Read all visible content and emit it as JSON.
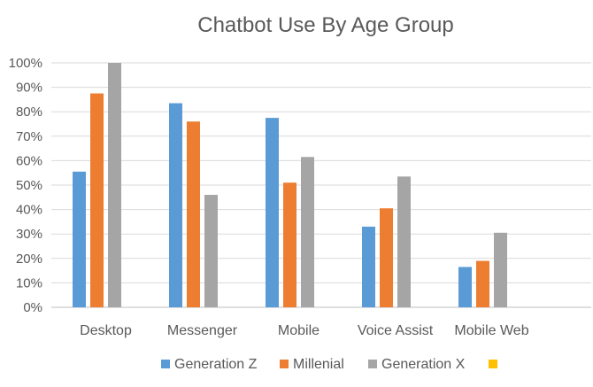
{
  "chart_data": {
    "type": "bar",
    "title": "Chatbot Use By Age Group",
    "xlabel": "",
    "ylabel": "",
    "categories": [
      "Desktop",
      "Messenger",
      "Mobile",
      "Voice Assist",
      "Mobile Web"
    ],
    "ylim": [
      0,
      100
    ],
    "ytick_values": [
      0,
      10,
      20,
      30,
      40,
      50,
      60,
      70,
      80,
      90,
      100
    ],
    "ytick_labels": [
      "0%",
      "10%",
      "20%",
      "30%",
      "40%",
      "50%",
      "60%",
      "70%",
      "80%",
      "90%",
      "100%"
    ],
    "grid": true,
    "legend_position": "bottom",
    "series": [
      {
        "name": "Generation Z",
        "color": "#5b9bd5",
        "values": [
          55.5,
          83.5,
          77.5,
          33,
          16.5
        ]
      },
      {
        "name": "Millenial",
        "color": "#ed7d31",
        "values": [
          87.5,
          76,
          51,
          40.5,
          19
        ]
      },
      {
        "name": "Generation X",
        "color": "#a5a5a5",
        "values": [
          100,
          46,
          61.5,
          53.5,
          30.5
        ]
      },
      {
        "name": "",
        "color": "#ffc000",
        "values": [
          0,
          0,
          0,
          0,
          0
        ]
      }
    ]
  }
}
